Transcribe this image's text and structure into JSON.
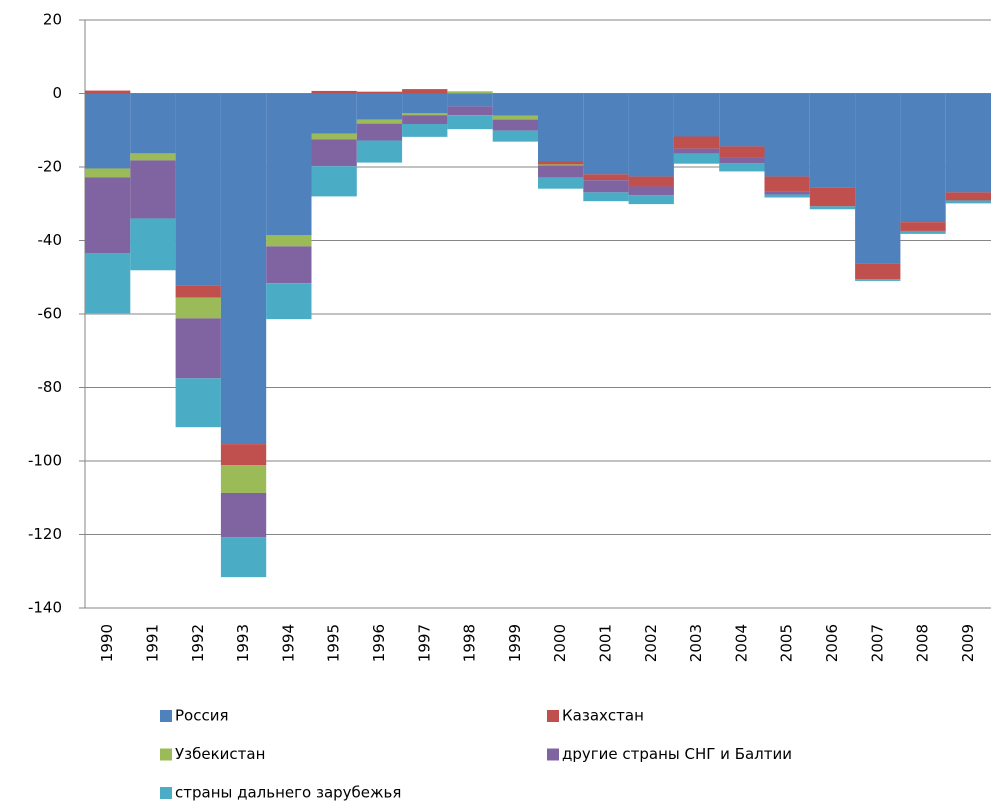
{
  "chart_data": {
    "type": "stacked_bar",
    "categories": [
      "1990",
      "1991",
      "1992",
      "1993",
      "1994",
      "1995",
      "1996",
      "1997",
      "1998",
      "1999",
      "2000",
      "2001",
      "2002",
      "2003",
      "2004",
      "2005",
      "2006",
      "2007",
      "2008",
      "2009"
    ],
    "series": [
      {
        "name": "Россия",
        "color": "#4f81bd",
        "values": [
          -20.4,
          -16.3,
          -52.2,
          -95.4,
          -38.6,
          -10.9,
          -7.1,
          -5.4,
          -3.5,
          -6,
          -18.5,
          -22,
          -22.6,
          -11.7,
          -14.4,
          -22.6,
          -25.5,
          -46.2,
          -35,
          -26.9
        ]
      },
      {
        "name": "Казахстан",
        "color": "#c0504d",
        "values": [
          0.8,
          0,
          -3.3,
          -5.7,
          0,
          0.7,
          0.5,
          1.2,
          0,
          0,
          -0.8,
          -1.6,
          -2.7,
          -3.3,
          -3,
          -4.1,
          -5.2,
          -4.3,
          -2.4,
          -2.2
        ]
      },
      {
        "name": "Узбекистан",
        "color": "#9bbb59",
        "values": [
          -2.4,
          -1.9,
          -5.7,
          -7.6,
          -3,
          -1.6,
          -1.1,
          -0.5,
          0.6,
          -1.1,
          -0.3,
          0,
          0,
          0,
          0,
          0,
          0,
          0,
          0,
          0
        ]
      },
      {
        "name": "другие страны СНГ и Балтии",
        "color": "#8064a2",
        "values": [
          -20.7,
          -15.8,
          -16.3,
          -12,
          -10,
          -7.3,
          -4.6,
          -2.4,
          -2.4,
          -3,
          -3.3,
          -3.3,
          -2.4,
          -1.4,
          -1.6,
          -0.8,
          0,
          0,
          0,
          0
        ]
      },
      {
        "name": "страны дальнего зарубежья",
        "color": "#4bacc6",
        "values": [
          -16.3,
          -14.1,
          -13.3,
          -10.9,
          -9.8,
          -8.2,
          -6,
          -3.5,
          -3.8,
          -3,
          -3,
          -2.4,
          -2.4,
          -2.7,
          -2.2,
          -0.8,
          -0.8,
          -0.5,
          -0.8,
          -0.8
        ]
      }
    ],
    "ylim": [
      -140,
      20
    ],
    "yticks": [
      -140,
      -120,
      -100,
      -80,
      -60,
      -40,
      -20,
      0,
      20
    ],
    "grid": true
  }
}
